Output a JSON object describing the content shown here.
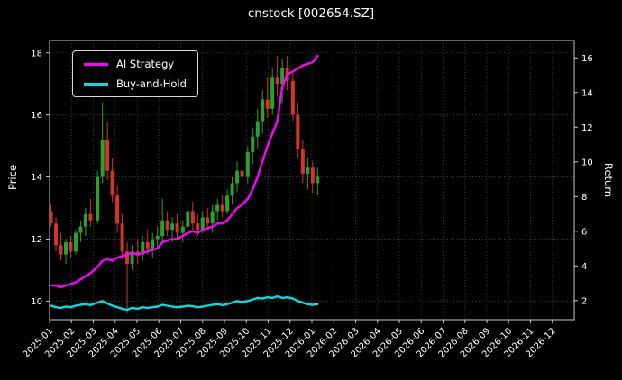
{
  "chart_data": {
    "type": "candlestick",
    "title": "cnstock [002654.SZ]",
    "ylabel": "Price",
    "ylabel_right": "Return",
    "ylim": [
      9.4,
      18.4
    ],
    "ylim_right": [
      0.9,
      17.0
    ],
    "yticks": [
      10,
      12,
      14,
      16,
      18
    ],
    "yticks_right": [
      2,
      4,
      6,
      8,
      10,
      12,
      14,
      16
    ],
    "xticks": [
      "2025-01",
      "2025-02",
      "2025-03",
      "2025-04",
      "2025-05",
      "2025-06",
      "2025-07",
      "2025-08",
      "2025-09",
      "2025-10",
      "2025-11",
      "2025-12",
      "2026-01",
      "2026-02",
      "2026-03",
      "2026-04",
      "2026-05",
      "2026-06",
      "2026-07",
      "2026-08",
      "2026-09",
      "2026-10",
      "2026-11",
      "2026-12"
    ],
    "grid": true,
    "legend_position": "upper-left",
    "up_color": "#2ca02c",
    "down_color": "#d1352b",
    "dates": [
      "2025-01-03",
      "2025-01-10",
      "2025-01-17",
      "2025-01-24",
      "2025-01-31",
      "2025-02-07",
      "2025-02-14",
      "2025-02-21",
      "2025-02-28",
      "2025-03-07",
      "2025-03-14",
      "2025-03-21",
      "2025-03-28",
      "2025-04-04",
      "2025-04-11",
      "2025-04-18",
      "2025-04-25",
      "2025-05-02",
      "2025-05-09",
      "2025-05-16",
      "2025-05-23",
      "2025-05-30",
      "2025-06-06",
      "2025-06-13",
      "2025-06-20",
      "2025-06-27",
      "2025-07-04",
      "2025-07-11",
      "2025-07-18",
      "2025-07-25",
      "2025-08-01",
      "2025-08-08",
      "2025-08-15",
      "2025-08-22",
      "2025-08-29",
      "2025-09-05",
      "2025-09-12",
      "2025-09-19",
      "2025-09-26",
      "2025-10-03",
      "2025-10-10",
      "2025-10-17",
      "2025-10-24",
      "2025-10-31",
      "2025-11-07",
      "2025-11-14",
      "2025-11-21",
      "2025-11-28",
      "2025-12-05",
      "2025-12-12",
      "2025-12-19",
      "2025-12-26",
      "2026-01-02",
      "2026-01-09"
    ],
    "ohlc": [
      [
        12.9,
        13.1,
        12.4,
        12.5
      ],
      [
        12.5,
        12.7,
        11.6,
        11.8
      ],
      [
        11.8,
        12.2,
        11.3,
        11.5
      ],
      [
        11.5,
        12.0,
        11.2,
        11.9
      ],
      [
        11.9,
        12.1,
        11.4,
        11.6
      ],
      [
        11.6,
        12.3,
        11.5,
        12.2
      ],
      [
        12.2,
        12.6,
        11.9,
        12.4
      ],
      [
        12.4,
        13.0,
        12.1,
        12.8
      ],
      [
        12.8,
        13.3,
        12.4,
        12.6
      ],
      [
        12.6,
        14.2,
        12.5,
        14.0
      ],
      [
        14.0,
        16.4,
        13.8,
        15.2
      ],
      [
        15.2,
        15.8,
        13.9,
        14.2
      ],
      [
        14.2,
        14.6,
        13.2,
        13.4
      ],
      [
        13.4,
        13.7,
        12.2,
        12.5
      ],
      [
        12.5,
        12.8,
        11.4,
        11.6
      ],
      [
        11.6,
        11.9,
        9.6,
        11.2
      ],
      [
        11.2,
        11.8,
        11.0,
        11.6
      ],
      [
        11.6,
        12.0,
        11.2,
        11.5
      ],
      [
        11.5,
        12.1,
        11.3,
        11.9
      ],
      [
        11.9,
        12.3,
        11.5,
        11.7
      ],
      [
        11.7,
        12.2,
        11.4,
        12.0
      ],
      [
        12.0,
        12.4,
        11.7,
        12.1
      ],
      [
        12.1,
        13.3,
        11.9,
        12.6
      ],
      [
        12.6,
        12.9,
        12.1,
        12.3
      ],
      [
        12.3,
        12.7,
        11.9,
        12.5
      ],
      [
        12.5,
        12.8,
        12.0,
        12.2
      ],
      [
        12.2,
        12.6,
        11.9,
        12.4
      ],
      [
        12.4,
        13.1,
        12.2,
        12.9
      ],
      [
        12.9,
        13.2,
        12.3,
        12.5
      ],
      [
        12.5,
        12.8,
        12.1,
        12.3
      ],
      [
        12.3,
        12.9,
        12.2,
        12.7
      ],
      [
        12.7,
        13.0,
        12.3,
        12.5
      ],
      [
        12.5,
        13.1,
        12.2,
        12.9
      ],
      [
        12.9,
        13.3,
        12.6,
        13.1
      ],
      [
        13.1,
        13.4,
        12.7,
        12.9
      ],
      [
        12.9,
        13.6,
        12.8,
        13.4
      ],
      [
        13.4,
        14.0,
        13.1,
        13.8
      ],
      [
        13.8,
        14.5,
        13.5,
        14.2
      ],
      [
        14.2,
        14.8,
        13.8,
        14.0
      ],
      [
        14.0,
        15.0,
        13.8,
        14.8
      ],
      [
        14.8,
        15.6,
        14.4,
        15.3
      ],
      [
        15.3,
        16.2,
        14.9,
        15.8
      ],
      [
        15.8,
        16.8,
        15.4,
        16.5
      ],
      [
        16.5,
        17.2,
        15.9,
        16.2
      ],
      [
        16.2,
        17.5,
        16.0,
        17.2
      ],
      [
        17.2,
        17.9,
        16.6,
        17.0
      ],
      [
        17.0,
        17.8,
        16.4,
        17.5
      ],
      [
        17.5,
        17.9,
        16.8,
        17.1
      ],
      [
        17.1,
        17.4,
        15.8,
        16.0
      ],
      [
        16.0,
        16.4,
        14.6,
        14.9
      ],
      [
        14.9,
        15.2,
        13.8,
        14.1
      ],
      [
        14.1,
        14.6,
        13.6,
        14.3
      ],
      [
        14.3,
        14.5,
        13.5,
        13.8
      ],
      [
        13.8,
        14.3,
        13.4,
        14.0
      ]
    ],
    "series": [
      {
        "name": "AI Strategy",
        "color": "#ff00ff",
        "values": [
          10.5,
          10.5,
          10.45,
          10.5,
          10.55,
          10.6,
          10.7,
          10.8,
          10.9,
          11.1,
          11.3,
          11.35,
          11.3,
          11.4,
          11.45,
          11.5,
          11.55,
          11.5,
          11.55,
          11.6,
          11.65,
          11.7,
          11.9,
          11.95,
          12.0,
          12.0,
          12.1,
          12.2,
          12.25,
          12.2,
          12.3,
          12.35,
          12.4,
          12.5,
          12.5,
          12.6,
          12.8,
          13.0,
          13.1,
          13.3,
          13.6,
          14.0,
          14.5,
          15.0,
          15.4,
          15.8,
          16.9,
          17.3,
          17.4,
          17.5,
          17.6,
          17.65,
          17.7,
          17.9
        ]
      },
      {
        "name": "Buy-and-Hold",
        "color": "#00e0e0",
        "values": [
          9.85,
          9.8,
          9.78,
          9.82,
          9.8,
          9.85,
          9.88,
          9.9,
          9.87,
          9.95,
          10.0,
          9.92,
          9.85,
          9.8,
          9.75,
          9.72,
          9.78,
          9.75,
          9.8,
          9.78,
          9.8,
          9.82,
          9.88,
          9.85,
          9.82,
          9.8,
          9.82,
          9.85,
          9.83,
          9.8,
          9.82,
          9.85,
          9.88,
          9.9,
          9.87,
          9.9,
          9.95,
          10.0,
          9.97,
          10.0,
          10.05,
          10.1,
          10.08,
          10.12,
          10.1,
          10.15,
          10.1,
          10.12,
          10.08,
          10.0,
          9.95,
          9.9,
          9.88,
          9.9
        ]
      }
    ]
  }
}
